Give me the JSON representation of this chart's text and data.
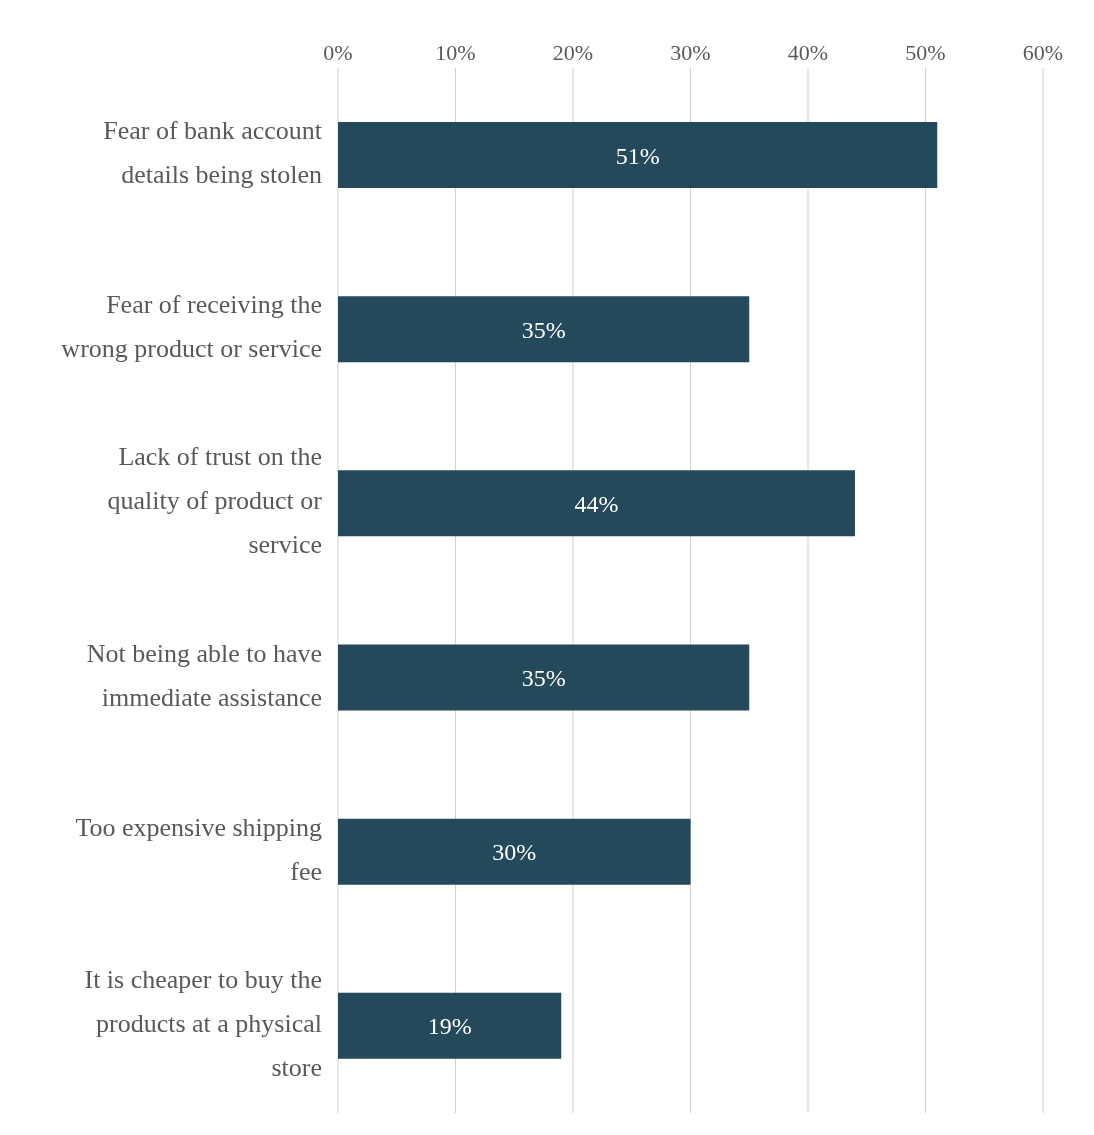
{
  "chart_data": {
    "type": "bar",
    "orientation": "horizontal",
    "categories": [
      "Fear of bank account details being stolen",
      "Fear of receiving the wrong product or service",
      "Lack of trust on the quality of product or service",
      "Not being able to have immediate assistance",
      "Too expensive shipping fee",
      "It is cheaper to buy the products at a physical store"
    ],
    "values": [
      51,
      35,
      44,
      35,
      30,
      19
    ],
    "value_labels": [
      "51%",
      "35%",
      "44%",
      "35%",
      "30%",
      "19%"
    ],
    "color": "#23495a",
    "xlim": [
      0,
      60
    ],
    "xticks": [
      {
        "value": 0,
        "label": "0%"
      },
      {
        "value": 10,
        "label": "10%"
      },
      {
        "value": 20,
        "label": "20%"
      },
      {
        "value": 30,
        "label": "30%"
      },
      {
        "value": 40,
        "label": "40%"
      },
      {
        "value": 50,
        "label": "50%"
      },
      {
        "value": 60,
        "label": "60%"
      }
    ],
    "grid": "x",
    "legend": false
  }
}
